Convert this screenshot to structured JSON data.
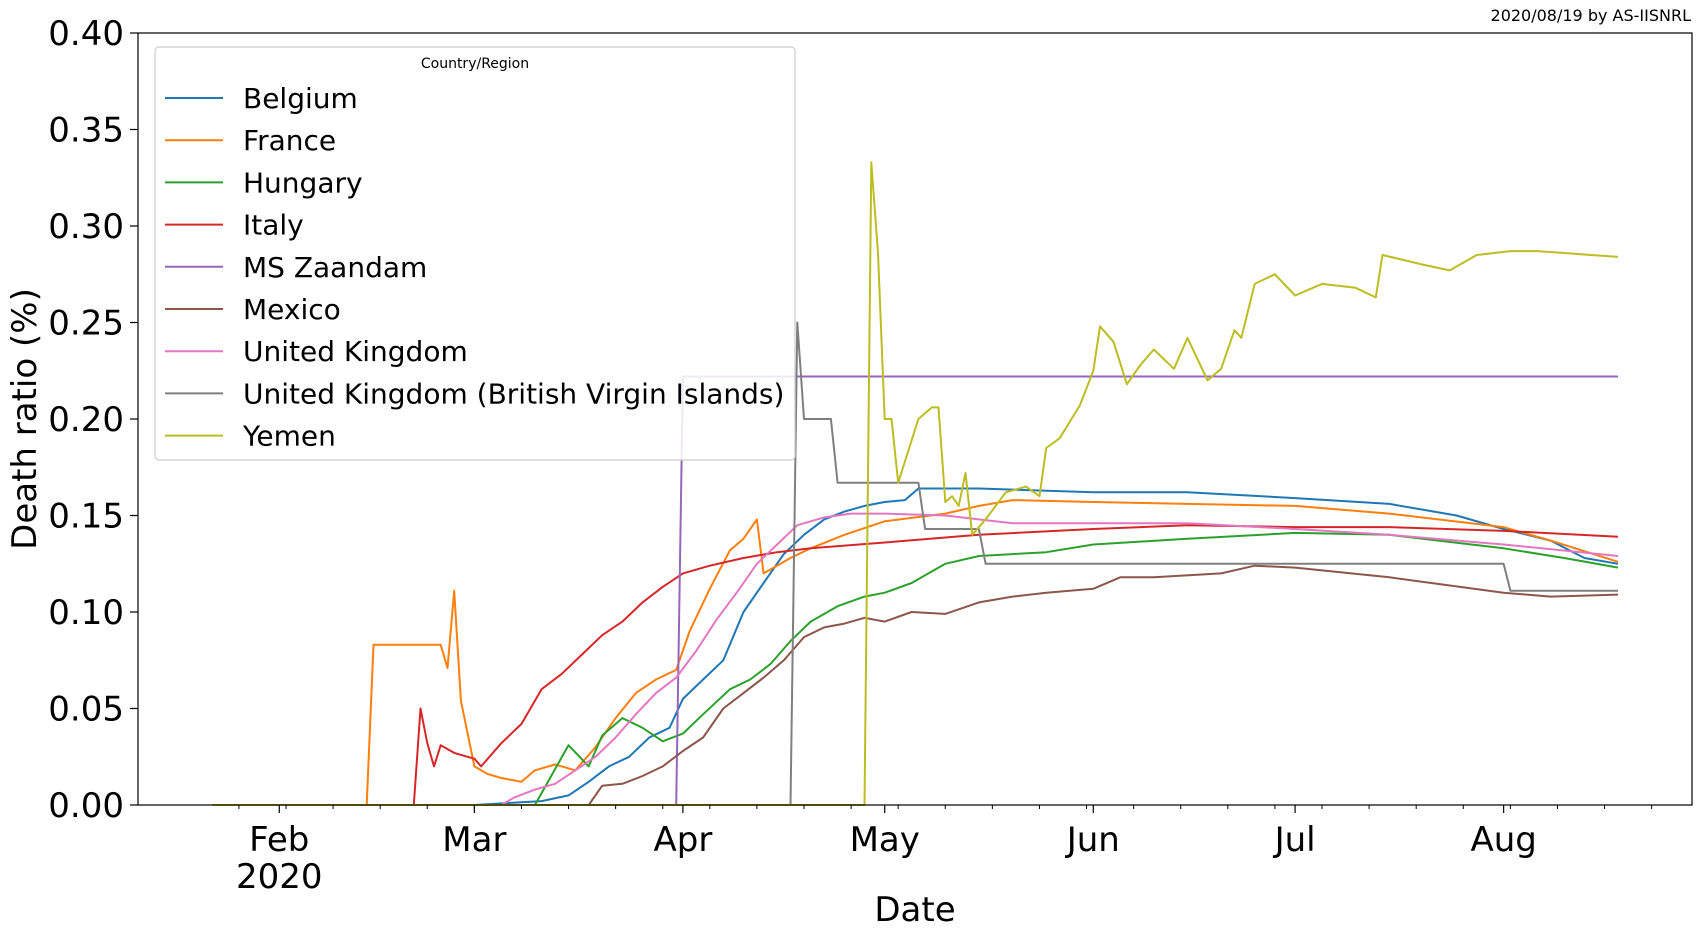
{
  "credit": "2020/08/19 by AS-IISNRL",
  "chart_data": {
    "type": "line",
    "title": "",
    "xlabel": "Date",
    "ylabel": "Death ratio (%)",
    "ylim": [
      0.0,
      0.4
    ],
    "yticks": [
      "0.00",
      "0.05",
      "0.10",
      "0.15",
      "0.20",
      "0.25",
      "0.30",
      "0.35",
      "0.40"
    ],
    "x_range": [
      "2020-01-22",
      "2020-08-18"
    ],
    "xticks": [
      {
        "date": "2020-02-01",
        "label": "Feb",
        "sublabel": "2020"
      },
      {
        "date": "2020-03-01",
        "label": "Mar",
        "sublabel": ""
      },
      {
        "date": "2020-04-01",
        "label": "Apr",
        "sublabel": ""
      },
      {
        "date": "2020-05-01",
        "label": "May",
        "sublabel": ""
      },
      {
        "date": "2020-06-01",
        "label": "Jun",
        "sublabel": ""
      },
      {
        "date": "2020-07-01",
        "label": "Jul",
        "sublabel": ""
      },
      {
        "date": "2020-08-01",
        "label": "Aug",
        "sublabel": ""
      }
    ],
    "grid": false,
    "legend": {
      "title": "Country/Region",
      "position": "top-left"
    },
    "series": [
      {
        "name": "Belgium",
        "color": "#1f77b4",
        "points": [
          [
            "2020-01-22",
            0
          ],
          [
            "2020-03-01",
            0
          ],
          [
            "2020-03-11",
            0.002
          ],
          [
            "2020-03-15",
            0.005
          ],
          [
            "2020-03-18",
            0.012
          ],
          [
            "2020-03-21",
            0.02
          ],
          [
            "2020-03-24",
            0.025
          ],
          [
            "2020-03-27",
            0.035
          ],
          [
            "2020-03-30",
            0.04
          ],
          [
            "2020-04-01",
            0.055
          ],
          [
            "2020-04-04",
            0.065
          ],
          [
            "2020-04-07",
            0.075
          ],
          [
            "2020-04-10",
            0.1
          ],
          [
            "2020-04-13",
            0.115
          ],
          [
            "2020-04-16",
            0.13
          ],
          [
            "2020-04-19",
            0.14
          ],
          [
            "2020-04-22",
            0.148
          ],
          [
            "2020-04-25",
            0.152
          ],
          [
            "2020-04-28",
            0.155
          ],
          [
            "2020-05-01",
            0.157
          ],
          [
            "2020-05-04",
            0.158
          ],
          [
            "2020-05-06",
            0.164
          ],
          [
            "2020-05-15",
            0.164
          ],
          [
            "2020-06-01",
            0.162
          ],
          [
            "2020-06-15",
            0.162
          ],
          [
            "2020-07-01",
            0.159
          ],
          [
            "2020-07-15",
            0.156
          ],
          [
            "2020-07-25",
            0.15
          ],
          [
            "2020-08-01",
            0.143
          ],
          [
            "2020-08-08",
            0.137
          ],
          [
            "2020-08-13",
            0.128
          ],
          [
            "2020-08-18",
            0.125
          ]
        ]
      },
      {
        "name": "France",
        "color": "#ff7f0e",
        "points": [
          [
            "2020-01-22",
            0
          ],
          [
            "2020-02-14",
            0
          ],
          [
            "2020-02-15",
            0.083
          ],
          [
            "2020-02-25",
            0.083
          ],
          [
            "2020-02-26",
            0.071
          ],
          [
            "2020-02-27",
            0.111
          ],
          [
            "2020-02-28",
            0.054
          ],
          [
            "2020-03-01",
            0.02
          ],
          [
            "2020-03-03",
            0.016
          ],
          [
            "2020-03-05",
            0.014
          ],
          [
            "2020-03-08",
            0.012
          ],
          [
            "2020-03-10",
            0.018
          ],
          [
            "2020-03-13",
            0.021
          ],
          [
            "2020-03-16",
            0.018
          ],
          [
            "2020-03-19",
            0.03
          ],
          [
            "2020-03-22",
            0.045
          ],
          [
            "2020-03-25",
            0.058
          ],
          [
            "2020-03-28",
            0.065
          ],
          [
            "2020-03-31",
            0.07
          ],
          [
            "2020-04-02",
            0.09
          ],
          [
            "2020-04-05",
            0.112
          ],
          [
            "2020-04-08",
            0.132
          ],
          [
            "2020-04-10",
            0.138
          ],
          [
            "2020-04-12",
            0.148
          ],
          [
            "2020-04-13",
            0.12
          ],
          [
            "2020-04-17",
            0.128
          ],
          [
            "2020-04-20",
            0.133
          ],
          [
            "2020-04-25",
            0.14
          ],
          [
            "2020-05-01",
            0.147
          ],
          [
            "2020-05-10",
            0.151
          ],
          [
            "2020-05-15",
            0.155
          ],
          [
            "2020-05-20",
            0.158
          ],
          [
            "2020-06-01",
            0.157
          ],
          [
            "2020-06-15",
            0.156
          ],
          [
            "2020-07-01",
            0.155
          ],
          [
            "2020-07-15",
            0.151
          ],
          [
            "2020-08-01",
            0.144
          ],
          [
            "2020-08-08",
            0.137
          ],
          [
            "2020-08-18",
            0.126
          ]
        ]
      },
      {
        "name": "Hungary",
        "color": "#2ca02c",
        "points": [
          [
            "2020-01-22",
            0
          ],
          [
            "2020-03-10",
            0
          ],
          [
            "2020-03-15",
            0.031
          ],
          [
            "2020-03-18",
            0.02
          ],
          [
            "2020-03-20",
            0.036
          ],
          [
            "2020-03-23",
            0.045
          ],
          [
            "2020-03-26",
            0.04
          ],
          [
            "2020-03-29",
            0.033
          ],
          [
            "2020-04-01",
            0.037
          ],
          [
            "2020-04-04",
            0.047
          ],
          [
            "2020-04-08",
            0.06
          ],
          [
            "2020-04-11",
            0.065
          ],
          [
            "2020-04-14",
            0.073
          ],
          [
            "2020-04-17",
            0.085
          ],
          [
            "2020-04-20",
            0.095
          ],
          [
            "2020-04-24",
            0.103
          ],
          [
            "2020-04-28",
            0.108
          ],
          [
            "2020-05-01",
            0.11
          ],
          [
            "2020-05-05",
            0.115
          ],
          [
            "2020-05-10",
            0.125
          ],
          [
            "2020-05-15",
            0.129
          ],
          [
            "2020-05-25",
            0.131
          ],
          [
            "2020-06-01",
            0.135
          ],
          [
            "2020-06-15",
            0.138
          ],
          [
            "2020-07-01",
            0.141
          ],
          [
            "2020-07-15",
            0.14
          ],
          [
            "2020-08-01",
            0.133
          ],
          [
            "2020-08-10",
            0.128
          ],
          [
            "2020-08-18",
            0.123
          ]
        ]
      },
      {
        "name": "Italy",
        "color": "#d62728",
        "points": [
          [
            "2020-01-22",
            0
          ],
          [
            "2020-02-21",
            0
          ],
          [
            "2020-02-22",
            0.05
          ],
          [
            "2020-02-23",
            0.032
          ],
          [
            "2020-02-24",
            0.02
          ],
          [
            "2020-02-25",
            0.031
          ],
          [
            "2020-02-27",
            0.027
          ],
          [
            "2020-02-29",
            0.025
          ],
          [
            "2020-03-01",
            0.024
          ],
          [
            "2020-03-02",
            0.02
          ],
          [
            "2020-03-05",
            0.032
          ],
          [
            "2020-03-08",
            0.042
          ],
          [
            "2020-03-11",
            0.06
          ],
          [
            "2020-03-14",
            0.068
          ],
          [
            "2020-03-17",
            0.078
          ],
          [
            "2020-03-20",
            0.088
          ],
          [
            "2020-03-23",
            0.095
          ],
          [
            "2020-03-26",
            0.105
          ],
          [
            "2020-03-29",
            0.113
          ],
          [
            "2020-04-01",
            0.12
          ],
          [
            "2020-04-05",
            0.124
          ],
          [
            "2020-04-10",
            0.128
          ],
          [
            "2020-04-15",
            0.131
          ],
          [
            "2020-04-20",
            0.133
          ],
          [
            "2020-05-01",
            0.136
          ],
          [
            "2020-05-15",
            0.14
          ],
          [
            "2020-06-01",
            0.143
          ],
          [
            "2020-06-15",
            0.145
          ],
          [
            "2020-07-01",
            0.144
          ],
          [
            "2020-07-15",
            0.144
          ],
          [
            "2020-08-01",
            0.142
          ],
          [
            "2020-08-18",
            0.139
          ]
        ]
      },
      {
        "name": "MS Zaandam",
        "color": "#9467bd",
        "points": [
          [
            "2020-03-31",
            0
          ],
          [
            "2020-04-01",
            0.222
          ],
          [
            "2020-08-18",
            0.222
          ]
        ]
      },
      {
        "name": "Mexico",
        "color": "#8c564b",
        "points": [
          [
            "2020-01-22",
            0
          ],
          [
            "2020-03-18",
            0
          ],
          [
            "2020-03-20",
            0.01
          ],
          [
            "2020-03-23",
            0.011
          ],
          [
            "2020-03-26",
            0.015
          ],
          [
            "2020-03-29",
            0.02
          ],
          [
            "2020-04-01",
            0.028
          ],
          [
            "2020-04-04",
            0.035
          ],
          [
            "2020-04-07",
            0.05
          ],
          [
            "2020-04-10",
            0.058
          ],
          [
            "2020-04-13",
            0.066
          ],
          [
            "2020-04-16",
            0.075
          ],
          [
            "2020-04-19",
            0.087
          ],
          [
            "2020-04-22",
            0.092
          ],
          [
            "2020-04-25",
            0.094
          ],
          [
            "2020-04-28",
            0.097
          ],
          [
            "2020-05-01",
            0.095
          ],
          [
            "2020-05-05",
            0.1
          ],
          [
            "2020-05-10",
            0.099
          ],
          [
            "2020-05-15",
            0.105
          ],
          [
            "2020-05-20",
            0.108
          ],
          [
            "2020-05-25",
            0.11
          ],
          [
            "2020-06-01",
            0.112
          ],
          [
            "2020-06-05",
            0.118
          ],
          [
            "2020-06-10",
            0.118
          ],
          [
            "2020-06-20",
            0.12
          ],
          [
            "2020-06-25",
            0.124
          ],
          [
            "2020-07-01",
            0.123
          ],
          [
            "2020-07-15",
            0.118
          ],
          [
            "2020-08-01",
            0.11
          ],
          [
            "2020-08-08",
            0.108
          ],
          [
            "2020-08-18",
            0.109
          ]
        ]
      },
      {
        "name": "United Kingdom",
        "color": "#e377c2",
        "points": [
          [
            "2020-01-22",
            0
          ],
          [
            "2020-03-05",
            0
          ],
          [
            "2020-03-07",
            0.004
          ],
          [
            "2020-03-10",
            0.008
          ],
          [
            "2020-03-13",
            0.011
          ],
          [
            "2020-03-16",
            0.018
          ],
          [
            "2020-03-19",
            0.025
          ],
          [
            "2020-03-22",
            0.035
          ],
          [
            "2020-03-25",
            0.047
          ],
          [
            "2020-03-28",
            0.058
          ],
          [
            "2020-03-31",
            0.066
          ],
          [
            "2020-04-03",
            0.08
          ],
          [
            "2020-04-06",
            0.096
          ],
          [
            "2020-04-09",
            0.11
          ],
          [
            "2020-04-12",
            0.125
          ],
          [
            "2020-04-15",
            0.135
          ],
          [
            "2020-04-18",
            0.145
          ],
          [
            "2020-04-22",
            0.149
          ],
          [
            "2020-04-26",
            0.151
          ],
          [
            "2020-05-01",
            0.151
          ],
          [
            "2020-05-10",
            0.15
          ],
          [
            "2020-05-20",
            0.146
          ],
          [
            "2020-06-01",
            0.146
          ],
          [
            "2020-06-15",
            0.146
          ],
          [
            "2020-07-01",
            0.143
          ],
          [
            "2020-07-15",
            0.14
          ],
          [
            "2020-08-01",
            0.135
          ],
          [
            "2020-08-18",
            0.129
          ]
        ]
      },
      {
        "name": "United Kingdom (British Virgin Islands)",
        "color": "#7f7f7f",
        "points": [
          [
            "2020-01-22",
            0
          ],
          [
            "2020-04-17",
            0
          ],
          [
            "2020-04-18",
            0.25
          ],
          [
            "2020-04-19",
            0.2
          ],
          [
            "2020-04-23",
            0.2
          ],
          [
            "2020-04-24",
            0.167
          ],
          [
            "2020-05-06",
            0.167
          ],
          [
            "2020-05-07",
            0.143
          ],
          [
            "2020-05-15",
            0.143
          ],
          [
            "2020-05-16",
            0.125
          ],
          [
            "2020-08-01",
            0.125
          ],
          [
            "2020-08-02",
            0.111
          ],
          [
            "2020-08-18",
            0.111
          ]
        ]
      },
      {
        "name": "Yemen",
        "color": "#bcbd22",
        "points": [
          [
            "2020-01-22",
            0
          ],
          [
            "2020-04-28",
            0
          ],
          [
            "2020-04-29",
            0.333
          ],
          [
            "2020-04-30",
            0.286
          ],
          [
            "2020-05-01",
            0.2
          ],
          [
            "2020-05-02",
            0.2
          ],
          [
            "2020-05-03",
            0.167
          ],
          [
            "2020-05-06",
            0.2
          ],
          [
            "2020-05-08",
            0.206
          ],
          [
            "2020-05-09",
            0.206
          ],
          [
            "2020-05-10",
            0.157
          ],
          [
            "2020-05-11",
            0.16
          ],
          [
            "2020-05-12",
            0.155
          ],
          [
            "2020-05-13",
            0.172
          ],
          [
            "2020-05-14",
            0.14
          ],
          [
            "2020-05-16",
            0.148
          ],
          [
            "2020-05-19",
            0.162
          ],
          [
            "2020-05-22",
            0.165
          ],
          [
            "2020-05-24",
            0.16
          ],
          [
            "2020-05-25",
            0.185
          ],
          [
            "2020-05-27",
            0.19
          ],
          [
            "2020-05-30",
            0.207
          ],
          [
            "2020-06-01",
            0.225
          ],
          [
            "2020-06-02",
            0.248
          ],
          [
            "2020-06-04",
            0.24
          ],
          [
            "2020-06-06",
            0.218
          ],
          [
            "2020-06-08",
            0.228
          ],
          [
            "2020-06-10",
            0.236
          ],
          [
            "2020-06-13",
            0.226
          ],
          [
            "2020-06-15",
            0.242
          ],
          [
            "2020-06-18",
            0.22
          ],
          [
            "2020-06-20",
            0.226
          ],
          [
            "2020-06-22",
            0.246
          ],
          [
            "2020-06-23",
            0.242
          ],
          [
            "2020-06-25",
            0.27
          ],
          [
            "2020-06-28",
            0.275
          ],
          [
            "2020-07-01",
            0.264
          ],
          [
            "2020-07-05",
            0.27
          ],
          [
            "2020-07-10",
            0.268
          ],
          [
            "2020-07-13",
            0.263
          ],
          [
            "2020-07-14",
            0.285
          ],
          [
            "2020-07-20",
            0.28
          ],
          [
            "2020-07-24",
            0.277
          ],
          [
            "2020-07-28",
            0.285
          ],
          [
            "2020-08-02",
            0.287
          ],
          [
            "2020-08-06",
            0.287
          ],
          [
            "2020-08-10",
            0.286
          ],
          [
            "2020-08-14",
            0.285
          ],
          [
            "2020-08-18",
            0.284
          ]
        ]
      }
    ]
  }
}
